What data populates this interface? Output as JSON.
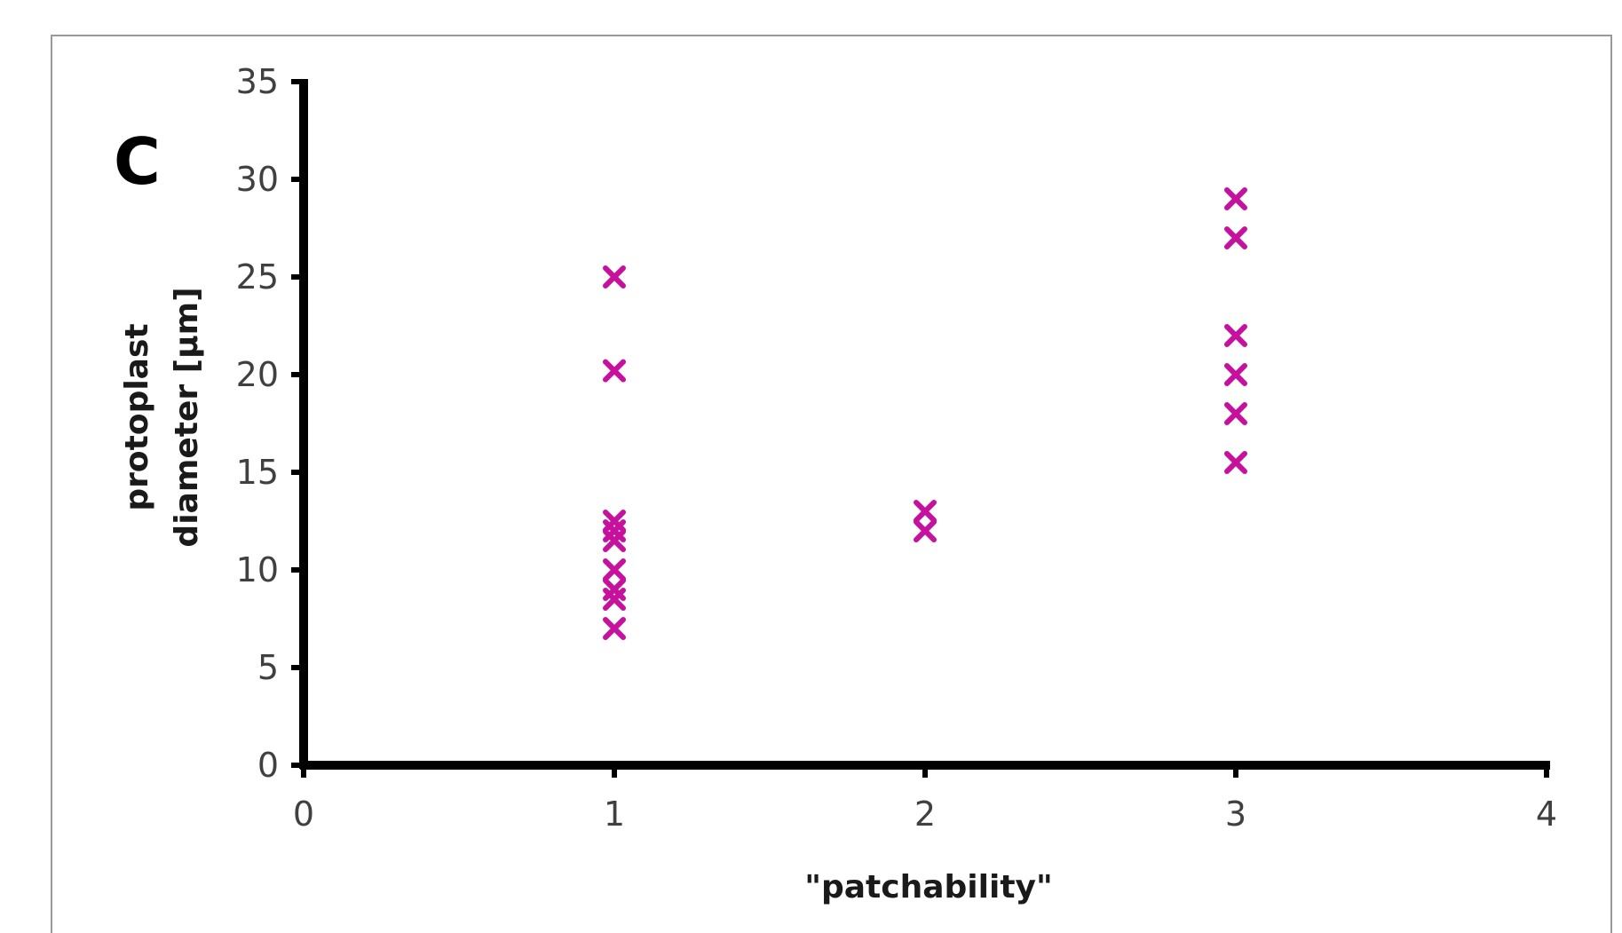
{
  "panel_label": "C",
  "colors": {
    "marker": "#c8109e",
    "axis": "#000000",
    "frame": "#999999",
    "tick_text": "#404040"
  },
  "chart_data": {
    "type": "scatter",
    "title": "",
    "xlabel": "\"patchability\"",
    "ylabel_lines": [
      "protoplast",
      "diameter [µm]"
    ],
    "xlim": [
      0,
      4
    ],
    "ylim": [
      0,
      35
    ],
    "x_ticks": [
      0,
      1,
      2,
      3,
      4
    ],
    "y_ticks": [
      0,
      5,
      10,
      15,
      20,
      25,
      30,
      35
    ],
    "x_tick_labels": [
      "0",
      "1",
      "2",
      "3",
      "4"
    ],
    "y_tick_labels": [
      "0",
      "5",
      "10",
      "15",
      "20",
      "25",
      "30",
      "35"
    ],
    "marker": "x",
    "grid": false,
    "legend": "none",
    "series": [
      {
        "points": [
          {
            "x": 1,
            "y": 25
          },
          {
            "x": 1,
            "y": 20.2
          },
          {
            "x": 1,
            "y": 12.5
          },
          {
            "x": 1,
            "y": 12
          },
          {
            "x": 1,
            "y": 11.5
          },
          {
            "x": 1,
            "y": 10
          },
          {
            "x": 1,
            "y": 9
          },
          {
            "x": 1,
            "y": 8.5
          },
          {
            "x": 1,
            "y": 7
          },
          {
            "x": 2,
            "y": 13
          },
          {
            "x": 2,
            "y": 12
          },
          {
            "x": 3,
            "y": 29
          },
          {
            "x": 3,
            "y": 27
          },
          {
            "x": 3,
            "y": 22
          },
          {
            "x": 3,
            "y": 20
          },
          {
            "x": 3,
            "y": 18
          },
          {
            "x": 3,
            "y": 15.5
          }
        ]
      }
    ]
  }
}
